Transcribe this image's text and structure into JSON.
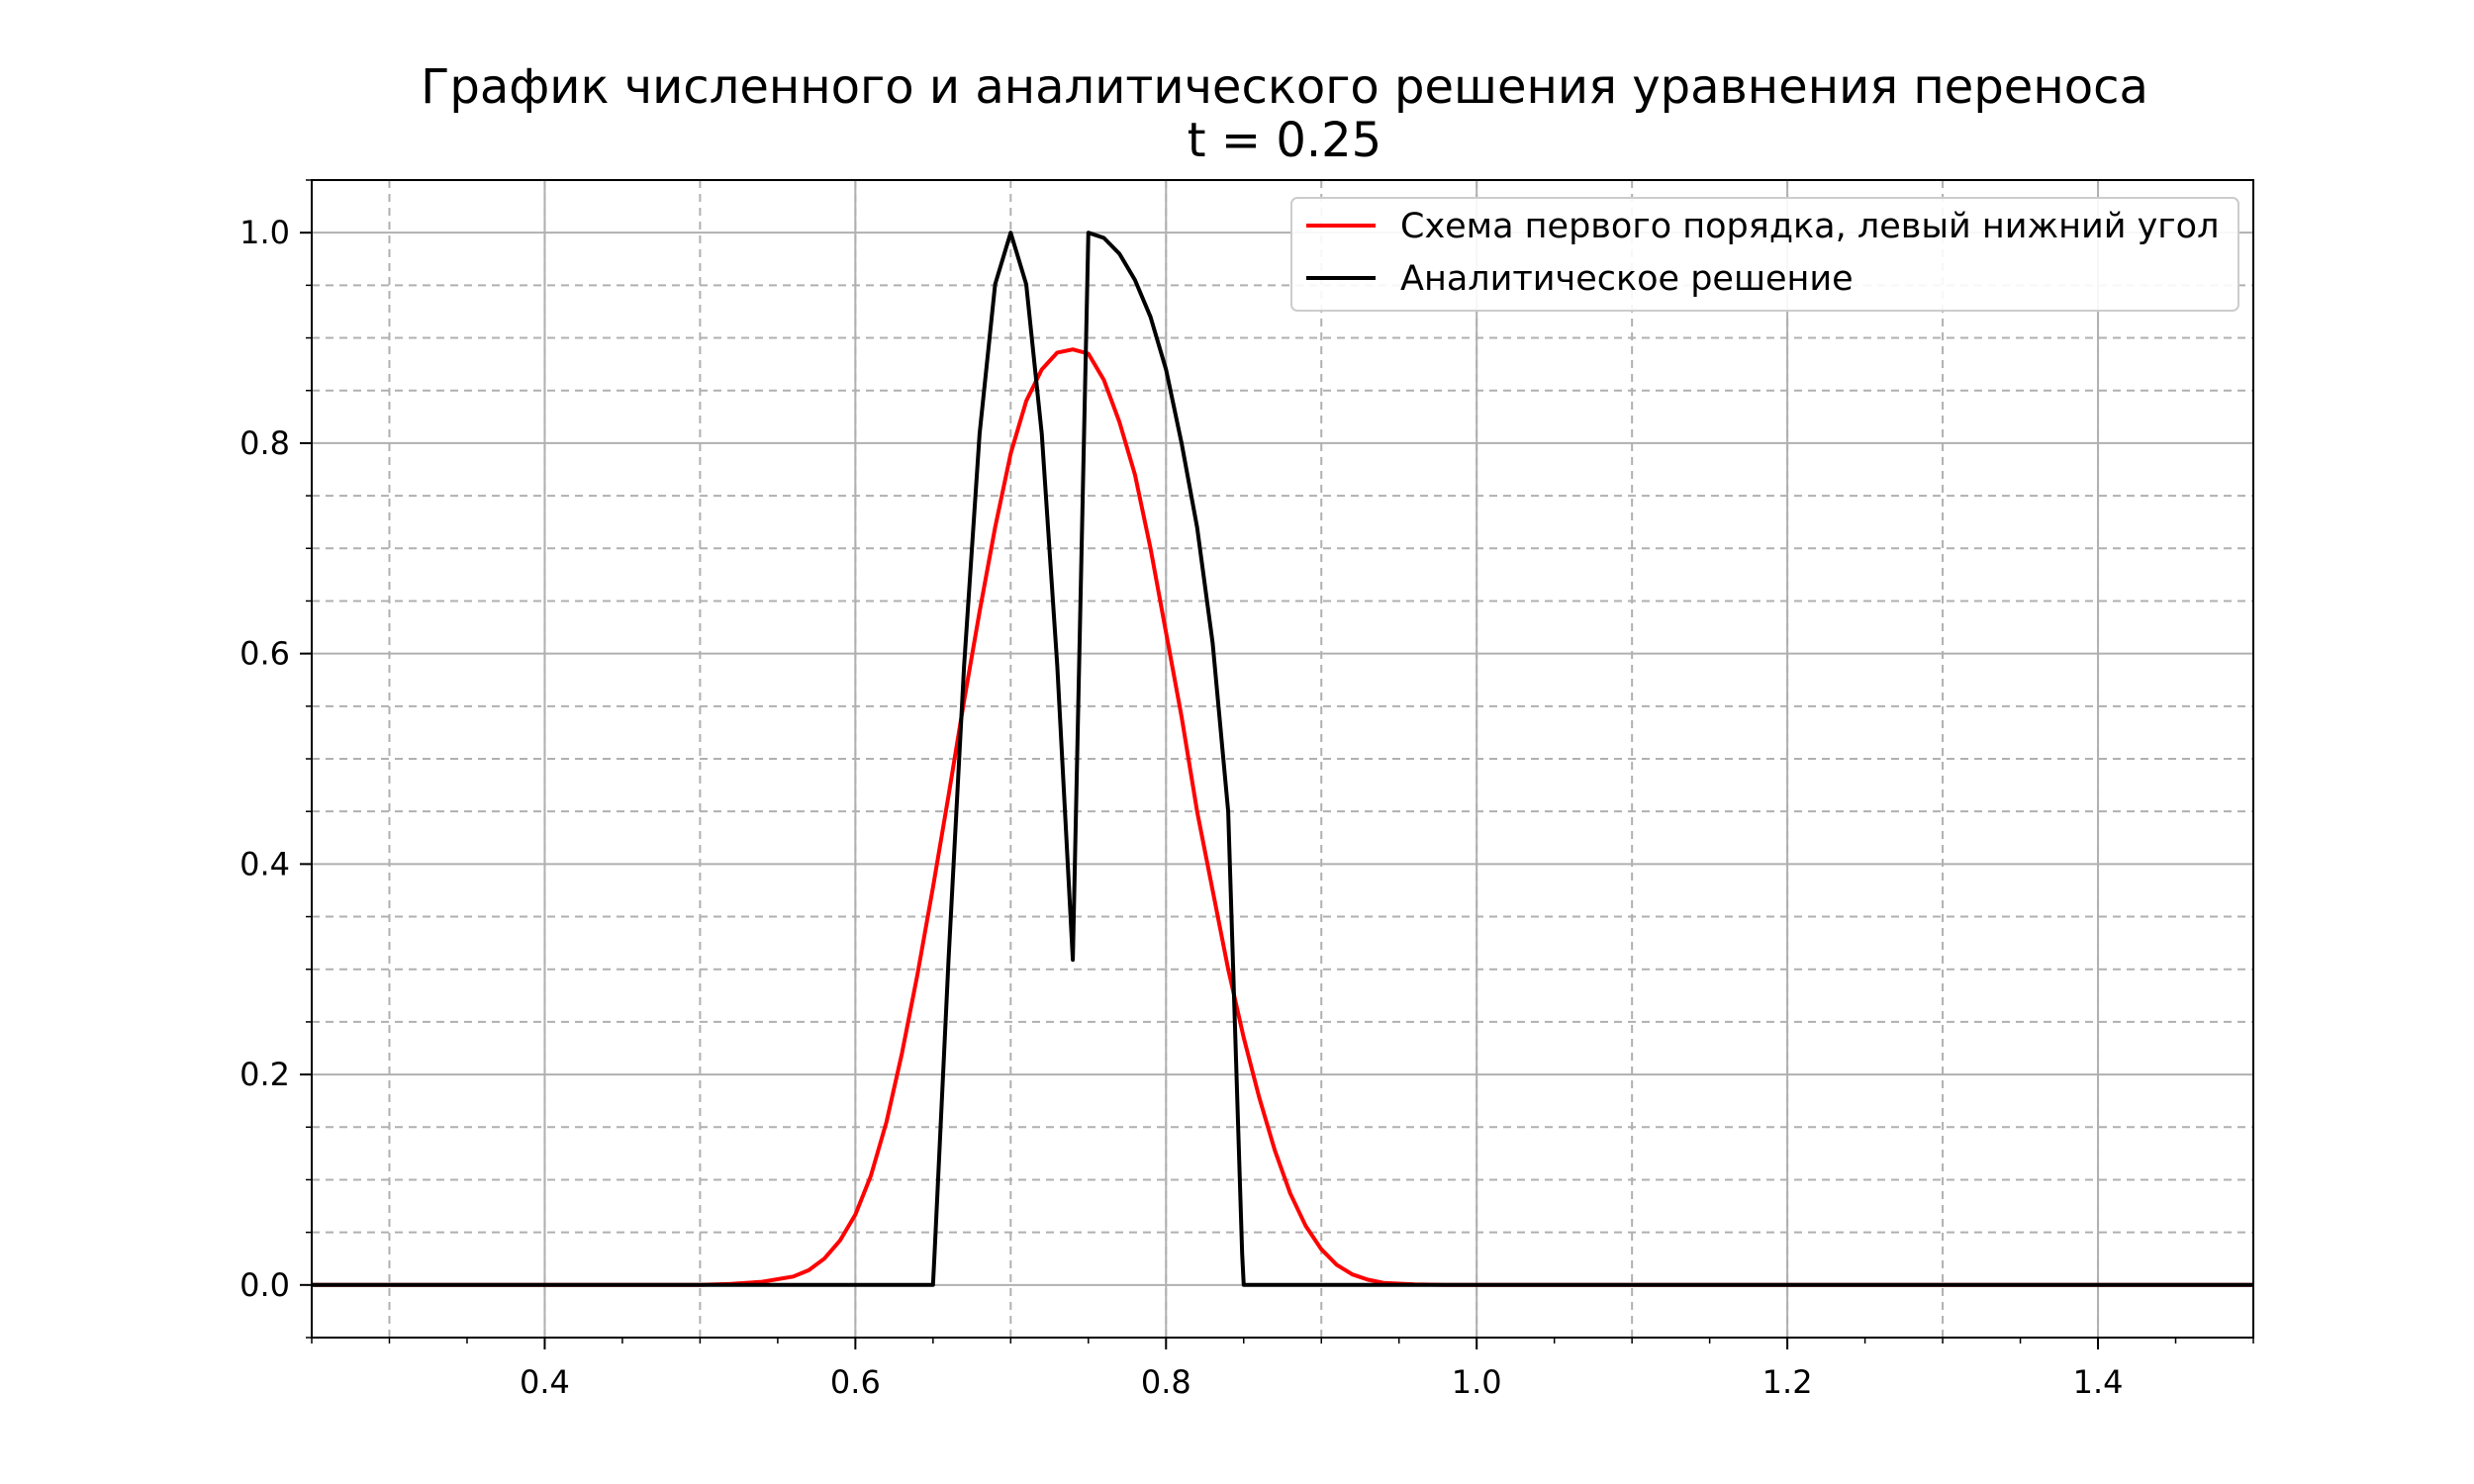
{
  "chart_data": {
    "type": "line",
    "title": "График численного и аналитического решения уравнения переноса",
    "subtitle": "t = 0.25",
    "xlabel": "",
    "ylabel": "",
    "xlim": [
      0.25,
      1.5
    ],
    "ylim": [
      -0.05,
      1.05
    ],
    "x_ticks": [
      0.4,
      0.6,
      0.8,
      1.0,
      1.2,
      1.4
    ],
    "x_tick_labels": [
      "0.4",
      "0.6",
      "0.8",
      "1.0",
      "1.2",
      "1.4"
    ],
    "y_ticks": [
      0.0,
      0.2,
      0.4,
      0.6,
      0.8,
      1.0
    ],
    "y_tick_labels": [
      "0.0",
      "0.2",
      "0.4",
      "0.6",
      "0.8",
      "1.0"
    ],
    "grid": true,
    "legend_position": "top-right",
    "series": [
      {
        "name": "Схема первого порядка, левый нижний угол",
        "color": "#ff0000",
        "x": [
          0.25,
          0.5,
          0.52,
          0.54,
          0.56,
          0.57,
          0.58,
          0.59,
          0.6,
          0.61,
          0.62,
          0.63,
          0.64,
          0.65,
          0.66,
          0.67,
          0.68,
          0.69,
          0.7,
          0.71,
          0.72,
          0.73,
          0.74,
          0.75,
          0.76,
          0.77,
          0.78,
          0.79,
          0.8,
          0.81,
          0.82,
          0.83,
          0.84,
          0.85,
          0.86,
          0.87,
          0.88,
          0.89,
          0.9,
          0.91,
          0.92,
          0.93,
          0.94,
          0.96,
          0.98,
          1.0,
          1.5
        ],
        "y": [
          0.0,
          0.0,
          0.001,
          0.003,
          0.008,
          0.014,
          0.025,
          0.042,
          0.067,
          0.104,
          0.155,
          0.22,
          0.295,
          0.378,
          0.465,
          0.555,
          0.64,
          0.72,
          0.79,
          0.84,
          0.87,
          0.886,
          0.889,
          0.885,
          0.86,
          0.82,
          0.77,
          0.7,
          0.62,
          0.54,
          0.45,
          0.375,
          0.3,
          0.235,
          0.178,
          0.128,
          0.087,
          0.056,
          0.034,
          0.019,
          0.01,
          0.005,
          0.002,
          0.0005,
          0.0,
          0.0,
          0.0
        ]
      },
      {
        "name": "Аналитическое решение",
        "color": "#000000",
        "x": [
          0.25,
          0.65,
          0.651,
          0.66,
          0.67,
          0.68,
          0.69,
          0.7,
          0.71,
          0.72,
          0.73,
          0.74,
          0.75,
          0.76,
          0.77,
          0.78,
          0.79,
          0.8,
          0.81,
          0.82,
          0.83,
          0.84,
          0.849,
          0.85,
          1.5
        ],
        "y": [
          0.0,
          0.0,
          0.03,
          0.309,
          0.588,
          0.809,
          0.951,
          1.0,
          0.951,
          0.809,
          0.588,
          0.309,
          1.0,
          0.995,
          0.98,
          0.955,
          0.92,
          0.87,
          0.8,
          0.72,
          0.61,
          0.45,
          0.03,
          0.0,
          0.0
        ]
      }
    ]
  }
}
